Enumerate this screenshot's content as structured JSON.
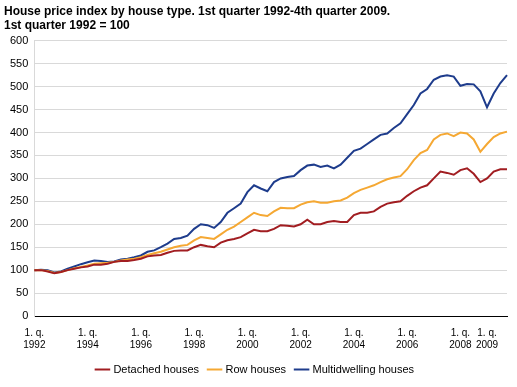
{
  "chart_data": {
    "type": "line",
    "title": "House price index by house type. 1st quarter 1992-4th quarter 2009. 1st quarter 1992 = 100",
    "categories": [
      "1. q. 1992",
      null,
      null,
      null,
      null,
      null,
      null,
      null,
      "1. q. 1994",
      null,
      null,
      null,
      null,
      null,
      null,
      null,
      "1. q. 1996",
      null,
      null,
      null,
      null,
      null,
      null,
      null,
      "1. q. 1998",
      null,
      null,
      null,
      null,
      null,
      null,
      null,
      "1. q. 2000",
      null,
      null,
      null,
      null,
      null,
      null,
      null,
      "1. q. 2002",
      null,
      null,
      null,
      null,
      null,
      null,
      null,
      "1. q. 2004",
      null,
      null,
      null,
      null,
      null,
      null,
      null,
      "1. q. 2006",
      null,
      null,
      null,
      null,
      null,
      null,
      null,
      "1. q. 2008",
      null,
      null,
      null,
      "1. q. 2009",
      null,
      null,
      null
    ],
    "series": [
      {
        "name": "Detached houses",
        "color": "#a11d21",
        "values": [
          100,
          100,
          97,
          93,
          96,
          100,
          103,
          106,
          108,
          112,
          112,
          114,
          118,
          120,
          120,
          122,
          125,
          130,
          132,
          133,
          138,
          142,
          143,
          143,
          150,
          155,
          152,
          150,
          160,
          165,
          168,
          172,
          180,
          188,
          185,
          185,
          190,
          198,
          197,
          195,
          200,
          210,
          200,
          200,
          205,
          207,
          205,
          205,
          220,
          225,
          225,
          228,
          238,
          245,
          248,
          250,
          262,
          272,
          280,
          285,
          300,
          315,
          312,
          308,
          318,
          322,
          310,
          292,
          300,
          315,
          320,
          320
        ]
      },
      {
        "name": "Row houses",
        "color": "#f5a833",
        "values": [
          100,
          100,
          98,
          94,
          96,
          100,
          104,
          107,
          110,
          114,
          115,
          116,
          118,
          121,
          123,
          125,
          128,
          133,
          137,
          140,
          145,
          150,
          153,
          155,
          165,
          172,
          170,
          168,
          178,
          188,
          195,
          205,
          215,
          225,
          220,
          218,
          228,
          236,
          235,
          235,
          243,
          248,
          250,
          247,
          247,
          250,
          252,
          258,
          268,
          275,
          280,
          285,
          292,
          298,
          302,
          305,
          320,
          340,
          355,
          362,
          385,
          395,
          398,
          392,
          400,
          398,
          385,
          358,
          375,
          390,
          398,
          402
        ]
      },
      {
        "name": "Multidwelling houses",
        "color": "#1e3c8c",
        "values": [
          100,
          101,
          100,
          95,
          97,
          103,
          108,
          113,
          117,
          121,
          120,
          118,
          119,
          123,
          125,
          128,
          132,
          140,
          143,
          150,
          158,
          168,
          170,
          175,
          190,
          200,
          198,
          192,
          205,
          225,
          235,
          245,
          270,
          285,
          278,
          272,
          292,
          300,
          303,
          305,
          318,
          328,
          330,
          325,
          328,
          322,
          330,
          345,
          360,
          365,
          375,
          385,
          395,
          398,
          410,
          420,
          440,
          460,
          485,
          495,
          515,
          522,
          525,
          522,
          502,
          506,
          505,
          490,
          455,
          485,
          508,
          525
        ]
      }
    ],
    "ylim": [
      0,
      600
    ],
    "yticks": [
      0,
      50,
      100,
      150,
      200,
      250,
      300,
      350,
      400,
      450,
      500,
      550,
      600
    ],
    "grid": true,
    "legend": "bottom"
  }
}
